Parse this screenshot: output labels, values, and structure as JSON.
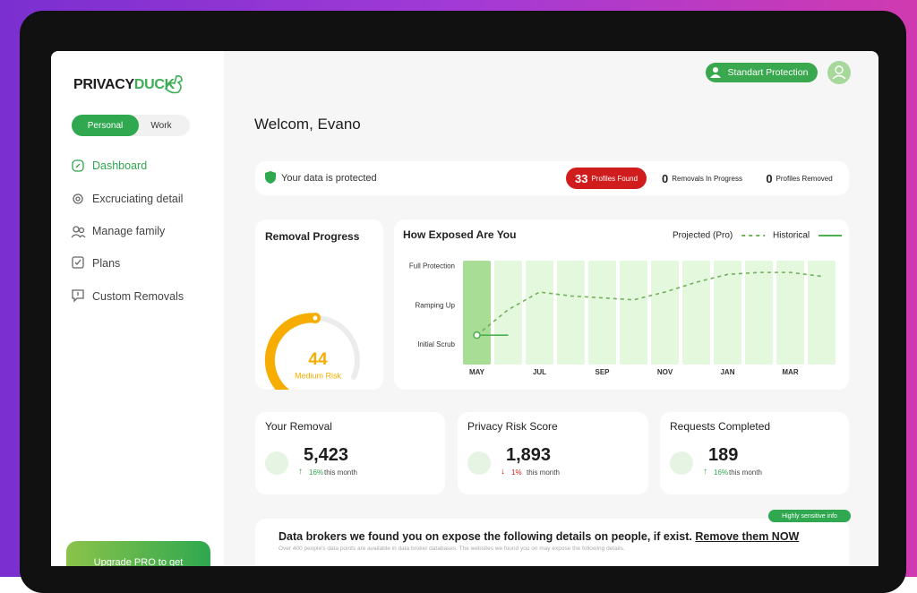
{
  "sidebar": {
    "logo": [
      "PRIVACY",
      "DUCK"
    ],
    "tabs": [
      "Personal",
      "Work"
    ],
    "nav": [
      "Dashboard",
      "Excruciating detail",
      "Manage family",
      "Plans",
      "Custom Removals"
    ],
    "upgrade": "Upgrade PRO to get"
  },
  "header": {
    "plan_button": "Standart Protection",
    "greeting": "Welcom, Evano"
  },
  "status": {
    "message": "Your data is protected",
    "counters": [
      {
        "count": "33",
        "label": "Profiles Found"
      },
      {
        "count": "0",
        "label": "Removals In Progress"
      },
      {
        "count": "0",
        "label": "Profiles Removed"
      }
    ]
  },
  "removal_progress": {
    "title": "Removal Progress",
    "score": "44",
    "risk": "Medium Risk"
  },
  "chart_data": {
    "type": "line",
    "title": "How Exposed Are You",
    "categories": [
      "MAY",
      null,
      "JUL",
      null,
      "SEP",
      null,
      "NOV",
      null,
      "JAN",
      null,
      "MAR",
      null
    ],
    "series": [
      {
        "name": "Projected (Pro)",
        "color": "#72b05a",
        "values": [
          0.25,
          0.9,
          1.35,
          1.25,
          1.2,
          1.15,
          1.35,
          1.6,
          1.8,
          1.85,
          1.85,
          1.75
        ]
      },
      {
        "name": "Historical",
        "color": "#4caf50",
        "values": [
          0.25,
          null,
          null,
          null,
          null,
          null,
          null,
          null,
          null,
          null,
          null,
          null
        ]
      }
    ],
    "ylim": [
      -0.5,
      2.15
    ],
    "yticks": [
      {
        "value": 0,
        "label": "Initial Scrub"
      },
      {
        "value": 1,
        "label": "Ramping Up"
      },
      {
        "value": 2,
        "label": "Full Protection"
      }
    ]
  },
  "stats": [
    {
      "title": "Your Removal",
      "value": "5,423",
      "change": "16%",
      "period": "this month"
    },
    {
      "title": "Privacy Risk Score",
      "value": "1,893",
      "change": "1%",
      "period": "this month"
    },
    {
      "title": "Requests Completed",
      "value": "189",
      "change": "16%",
      "period": "this month"
    }
  ],
  "brokers": {
    "tag": "Highly sensitive info",
    "heading": "Data brokers we found you on expose the following details on people, if exist.",
    "link": "Remove them NOW",
    "note": "Over 400 people's data points are available in data broker databases. The websites we found you on may expose the following details."
  }
}
